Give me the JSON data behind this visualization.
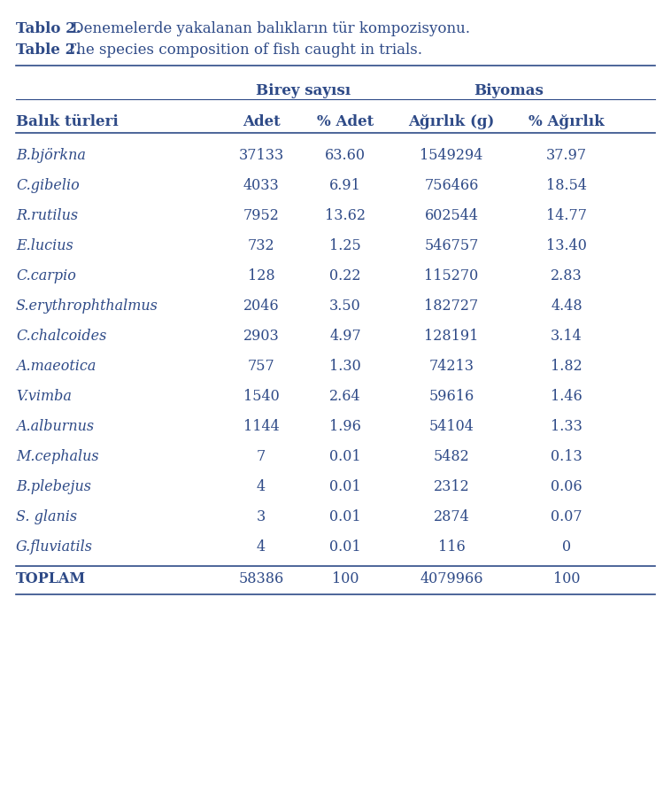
{
  "title_bold": "Tablo 2.",
  "title_rest": " Denemelerde yakalanan balıkların tür kompozisyonu.",
  "subtitle_bold": "Table 2.",
  "subtitle_rest": " The species composition of fish caught in trials.",
  "group_headers": [
    "Birey sayısı",
    "Biyomas"
  ],
  "col_headers": [
    "Balık türleri",
    "Adet",
    "% Adet",
    "Ağırlık (g)",
    "% Ağırlık"
  ],
  "rows": [
    [
      "B.björkna",
      "37133",
      "63.60",
      "1549294",
      "37.97"
    ],
    [
      "C.gibelio",
      "4033",
      "6.91",
      "756466",
      "18.54"
    ],
    [
      "R.rutilus",
      "7952",
      "13.62",
      "602544",
      "14.77"
    ],
    [
      "E.lucius",
      "732",
      "1.25",
      "546757",
      "13.40"
    ],
    [
      "C.carpio",
      "128",
      "0.22",
      "115270",
      "2.83"
    ],
    [
      "S.erythrophthalmus",
      "2046",
      "3.50",
      "182727",
      "4.48"
    ],
    [
      "C.chalcoides",
      "2903",
      "4.97",
      "128191",
      "3.14"
    ],
    [
      "A.maeotica",
      "757",
      "1.30",
      "74213",
      "1.82"
    ],
    [
      "V.vimba",
      "1540",
      "2.64",
      "59616",
      "1.46"
    ],
    [
      "A.alburnus",
      "1144",
      "1.96",
      "54104",
      "1.33"
    ],
    [
      "M.cephalus",
      "7",
      "0.01",
      "5482",
      "0.13"
    ],
    [
      "B.plebejus",
      "4",
      "0.01",
      "2312",
      "0.06"
    ],
    [
      "S. glanis",
      "3",
      "0.01",
      "2874",
      "0.07"
    ],
    [
      "G.fluviatils",
      "4",
      "0.01",
      "116",
      "0"
    ]
  ],
  "total_row": [
    "TOPLAM",
    "58386",
    "100",
    "4079966",
    "100"
  ],
  "bg_color": "#ffffff",
  "text_color": "#2e4a87",
  "font_size": 11.5,
  "header_font_size": 12
}
